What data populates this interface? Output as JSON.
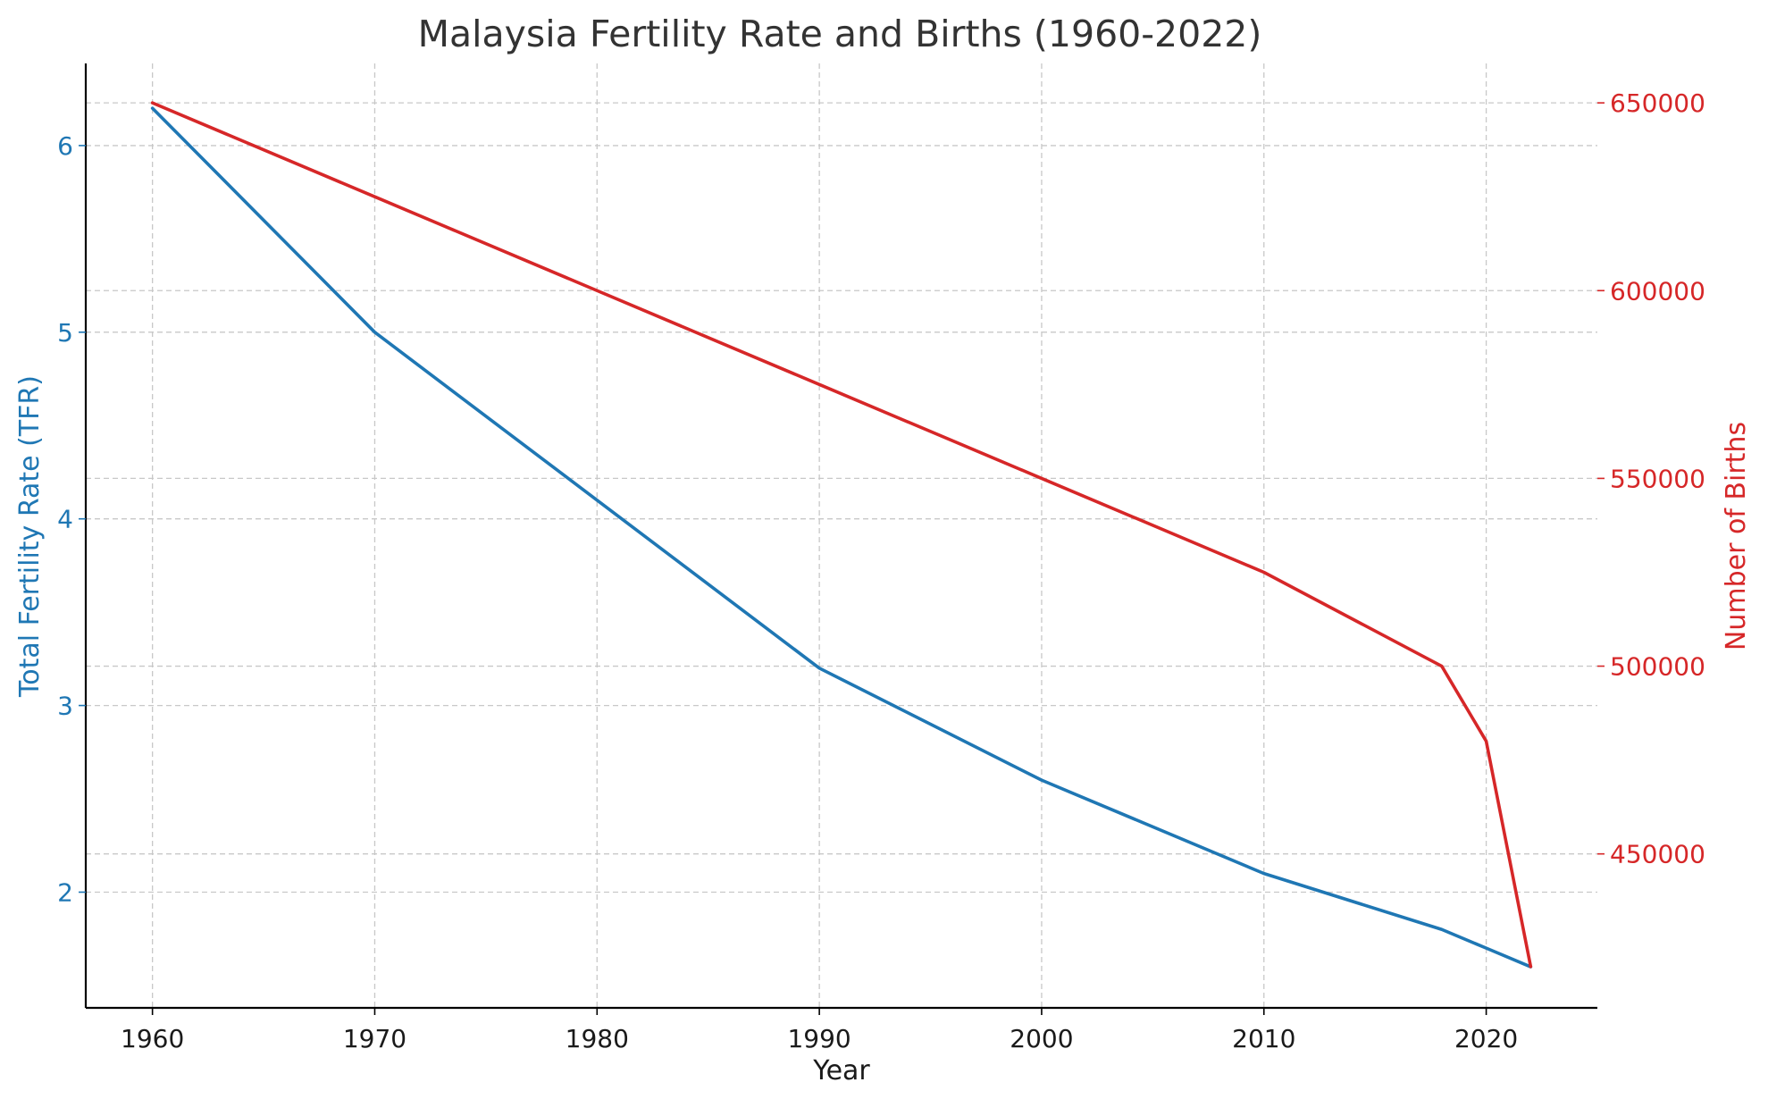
{
  "chart_data": {
    "type": "line",
    "title": "Malaysia Fertility Rate and Births (1960-2022)",
    "xlabel": "Year",
    "ylabel_left": "Total Fertility Rate (TFR)",
    "ylabel_right": "Number of Births",
    "x": [
      1960,
      1970,
      1980,
      1990,
      2000,
      2010,
      2018,
      2020,
      2022
    ],
    "xlim": [
      1957,
      2025
    ],
    "x_ticks": [
      1960,
      1970,
      1980,
      1990,
      2000,
      2010,
      2020
    ],
    "grid": true,
    "series": [
      {
        "axis": "left",
        "color": "#1f77b4",
        "values": [
          6.2,
          5.0,
          4.1,
          3.2,
          2.6,
          2.1,
          1.8,
          1.7,
          1.6
        ]
      },
      {
        "axis": "right",
        "color": "#d62728",
        "values": [
          650000,
          625000,
          600000,
          575000,
          550000,
          525000,
          500000,
          480000,
          420000
        ]
      }
    ],
    "y_left": {
      "lim": [
        1.38,
        6.44
      ],
      "ticks": [
        2,
        3,
        4,
        5,
        6
      ],
      "color": "#1f77b4"
    },
    "y_right": {
      "lim": [
        409000,
        660500
      ],
      "ticks": [
        450000,
        500000,
        550000,
        600000,
        650000
      ],
      "color": "#d62728"
    }
  }
}
